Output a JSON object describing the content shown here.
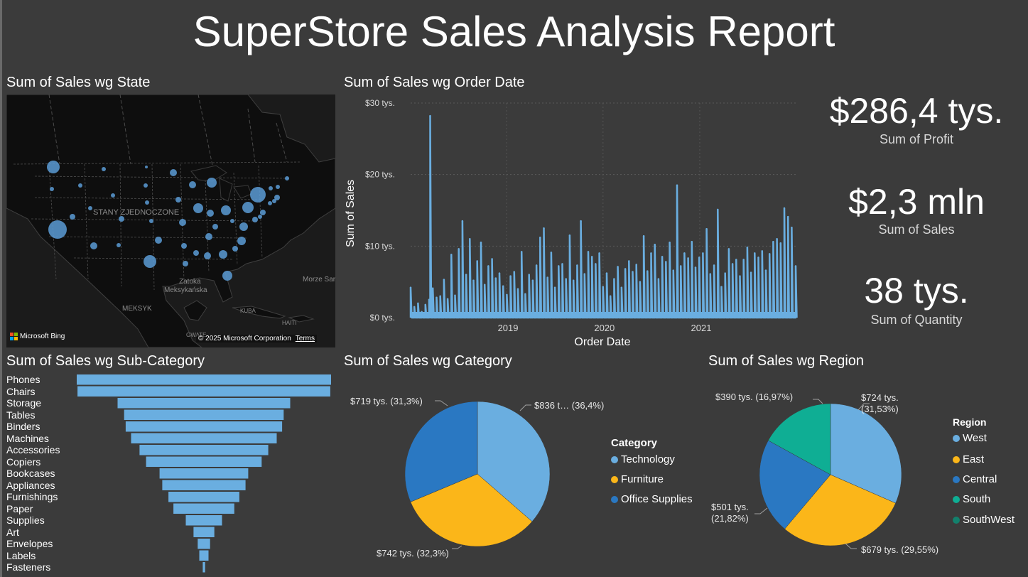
{
  "report": {
    "title": "SuperStore Sales Analysis Report"
  },
  "colors": {
    "background": "#3b3b3b",
    "series_blue": "#6aaee0",
    "technology": "#6aaee0",
    "furniture": "#fbb619",
    "office_supplies": "#2a78c2",
    "west": "#6aaee0",
    "east": "#fbb619",
    "central": "#2a78c2",
    "south": "#0fae94",
    "southwest": "#13806c"
  },
  "map": {
    "title": "Sum of Sales wg State",
    "labels": {
      "country": "STANY ZJEDNOCZONE",
      "gulf_line1": "Zatoka",
      "gulf_line2": "Meksykańska",
      "sea": "Morze Sargas",
      "mexico": "MEKSYK",
      "cuba": "KUBA",
      "haiti": "HAITI",
      "guatemala": "GWATE"
    },
    "bing_label": "Microsoft Bing",
    "copyright": "© 2025 Microsoft Corporation",
    "terms_link": "Terms"
  },
  "kpis": [
    {
      "value": "$286,4 tys.",
      "label": "Sum of Profit"
    },
    {
      "value": "$2,3 mln",
      "label": "Sum of Sales"
    },
    {
      "value": "38 tys.",
      "label": "Sum of Quantity"
    }
  ],
  "line_chart": {
    "title": "Sum of Sales wg Order Date",
    "xlabel": "Order Date",
    "ylabel": "Sum of Sales",
    "y_ticks": [
      "$30 tys.",
      "$20 tys.",
      "$10 tys.",
      "$0 tys."
    ],
    "x_ticks": [
      "2019",
      "2020",
      "2021"
    ]
  },
  "subcategory": {
    "title": "Sum of Sales wg Sub-Category"
  },
  "category_pie": {
    "title": "Sum of Sales wg Category",
    "legend_title": "Category",
    "legend": [
      "Technology",
      "Furniture",
      "Office Supplies"
    ],
    "data_labels": [
      "$836 t… (36,4%)",
      "$742 tys. (32,3%)",
      "$719 tys. (31,3%)"
    ]
  },
  "region_pie": {
    "title": "Sum of Sales wg Region",
    "legend_title": "Region",
    "legend": [
      "West",
      "East",
      "Central",
      "South",
      "SouthWest"
    ],
    "data_labels": {
      "west_line1": "$724 tys.",
      "west_line2": "(31,53%)",
      "east": "$679 tys. (29,55%)",
      "central_line1": "$501 tys.",
      "central_line2": "(21,82%)",
      "south": "$390 tys. (16,97%)"
    }
  },
  "chart_data": [
    {
      "type": "line",
      "title": "Sum of Sales wg Order Date",
      "xlabel": "Order Date",
      "ylabel": "Sum of Sales",
      "x_ticks": [
        "2019",
        "2020",
        "2021"
      ],
      "y_ticks": [
        "$0 tys.",
        "$10 tys.",
        "$20 tys.",
        "$30 tys."
      ],
      "ylim": [
        0,
        30
      ],
      "units": "tys. $",
      "xlim": [
        "2018-01-03",
        "2021-12-30"
      ],
      "series": [
        {
          "x": [
            "2018-01-03",
            "2018-01-17",
            "2018-01-31",
            "2018-02-14",
            "2018-02-28",
            "2018-03-14",
            "2018-03-18",
            "2018-03-28",
            "2018-04-11",
            "2018-04-25",
            "2018-05-09",
            "2018-05-23",
            "2018-06-06",
            "2018-06-20",
            "2018-07-04",
            "2018-07-18",
            "2018-08-01",
            "2018-08-15",
            "2018-08-29",
            "2018-09-12",
            "2018-09-26",
            "2018-10-10",
            "2018-10-24",
            "2018-11-07",
            "2018-11-21",
            "2018-12-05",
            "2018-12-19",
            "2019-01-02",
            "2019-01-16",
            "2019-01-30",
            "2019-02-13",
            "2019-02-27",
            "2019-03-13",
            "2019-03-27",
            "2019-04-10",
            "2019-04-24",
            "2019-05-08",
            "2019-05-22",
            "2019-06-05",
            "2019-06-19",
            "2019-07-03",
            "2019-07-17",
            "2019-07-31",
            "2019-08-14",
            "2019-08-28",
            "2019-09-11",
            "2019-09-25",
            "2019-10-09",
            "2019-10-23",
            "2019-11-06",
            "2019-11-20",
            "2019-12-04",
            "2019-12-18",
            "2020-01-01",
            "2020-01-15",
            "2020-01-29",
            "2020-02-12",
            "2020-02-26",
            "2020-03-11",
            "2020-03-25",
            "2020-04-08",
            "2020-04-22",
            "2020-05-06",
            "2020-05-20",
            "2020-06-03",
            "2020-06-17",
            "2020-07-01",
            "2020-07-15",
            "2020-07-29",
            "2020-08-12",
            "2020-08-26",
            "2020-09-09",
            "2020-09-23",
            "2020-10-07",
            "2020-10-21",
            "2020-11-04",
            "2020-11-18",
            "2020-12-02",
            "2020-12-16",
            "2020-12-30",
            "2021-01-13",
            "2021-01-27",
            "2021-02-10",
            "2021-02-24",
            "2021-03-10",
            "2021-03-24",
            "2021-04-07",
            "2021-04-21",
            "2021-05-05",
            "2021-05-19",
            "2021-06-02",
            "2021-06-16",
            "2021-06-30",
            "2021-07-14",
            "2021-07-28",
            "2021-08-11",
            "2021-08-25",
            "2021-09-08",
            "2021-09-22",
            "2021-10-06",
            "2021-10-20",
            "2021-11-03",
            "2021-11-17",
            "2021-12-01",
            "2021-12-15",
            "2021-12-30"
          ],
          "y": [
            4.2,
            1.5,
            2.0,
            0.8,
            1.8,
            2.5,
            28.2,
            4.1,
            2.8,
            3.0,
            5.3,
            2.6,
            8.8,
            3.1,
            9.6,
            13.5,
            6.0,
            11.0,
            5.2,
            7.9,
            10.5,
            4.6,
            7.2,
            8.2,
            5.5,
            6.2,
            4.4,
            3.2,
            5.8,
            6.4,
            4.0,
            9.2,
            3.3,
            6.0,
            5.2,
            7.3,
            11.2,
            12.5,
            5.6,
            9.1,
            4.2,
            7.2,
            7.5,
            5.4,
            11.5,
            5.2,
            7.3,
            13.5,
            6.1,
            9.2,
            8.5,
            7.5,
            9.0,
            4.3,
            6.2,
            3.0,
            5.4,
            7.1,
            4.2,
            6.8,
            7.9,
            6.4,
            7.4,
            5.0,
            11.4,
            6.5,
            9.0,
            10.2,
            5.4,
            8.5,
            7.8,
            10.5,
            6.6,
            18.5,
            7.2,
            9.0,
            8.3,
            10.6,
            7.0,
            8.4,
            9.0,
            12.4,
            6.1,
            7.3,
            15.1,
            4.3,
            6.2,
            9.6,
            7.5,
            8.1,
            5.8,
            8.1,
            9.8,
            6.3,
            9.0,
            8.4,
            9.3,
            6.6,
            8.9,
            10.6,
            11.0,
            10.4,
            15.3,
            14.1,
            12.6,
            7.2
          ]
        }
      ]
    },
    {
      "type": "bar",
      "orientation": "horizontal",
      "title": "Sum of Sales wg Sub-Category",
      "categories": [
        "Phones",
        "Chairs",
        "Storage",
        "Tables",
        "Binders",
        "Machines",
        "Accessories",
        "Copiers",
        "Bookcases",
        "Appliances",
        "Furnishings",
        "Paper",
        "Supplies",
        "Art",
        "Envelopes",
        "Labels",
        "Fasteners"
      ],
      "values": [
        330,
        328,
        224,
        207,
        203,
        189,
        167,
        150,
        115,
        108,
        92,
        79,
        47,
        27,
        16,
        12,
        3
      ],
      "units": "tys. $",
      "axis_labels_shown": false
    },
    {
      "type": "pie",
      "title": "Sum of Sales wg Category",
      "categories": [
        "Technology",
        "Furniture",
        "Office Supplies"
      ],
      "values": [
        836,
        742,
        719
      ],
      "percentages": [
        36.4,
        32.3,
        31.3
      ],
      "units": "tys. $",
      "legend_title": "Category",
      "legend_position": "right"
    },
    {
      "type": "pie",
      "title": "Sum of Sales wg Region",
      "categories": [
        "West",
        "East",
        "Central",
        "South",
        "SouthWest"
      ],
      "values": [
        724,
        679,
        501,
        390,
        0
      ],
      "percentages": [
        31.53,
        29.55,
        21.82,
        16.97,
        0
      ],
      "units": "tys. $",
      "legend_title": "Region",
      "legend_position": "right"
    }
  ]
}
